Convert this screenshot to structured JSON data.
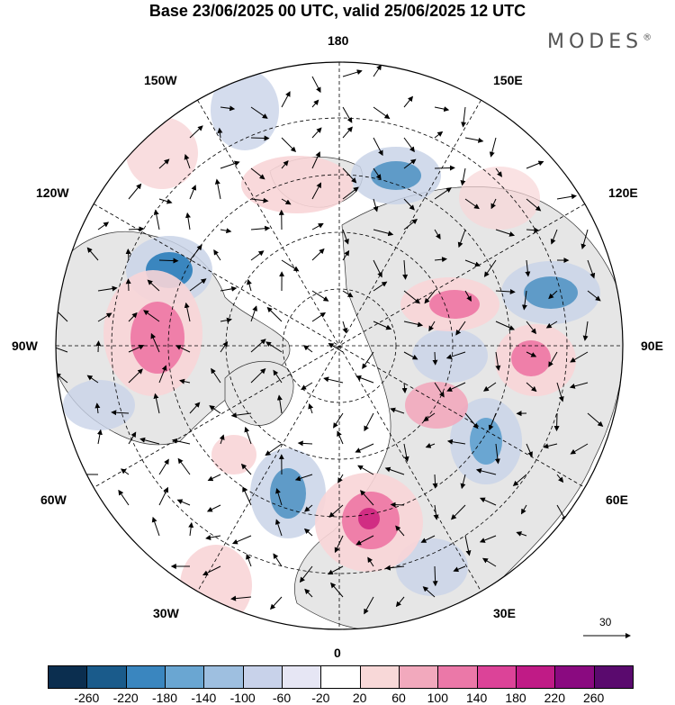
{
  "header": {
    "title": "Base 23/06/2025 00 UTC, valid 25/06/2025 12 UTC",
    "brand": "MODES",
    "brand_mark": "®"
  },
  "map": {
    "projection": "north-polar-stereographic",
    "longitude_labels": {
      "top": "180",
      "bottom": "0",
      "left": "90W",
      "right": "90E",
      "upper_left_1": "150W",
      "upper_left_2": "120W",
      "upper_right_1": "150E",
      "upper_right_2": "120E",
      "lower_left_1": "60W",
      "lower_left_2": "30W",
      "lower_right_1": "60E",
      "lower_right_2": "30E"
    },
    "vector_scale_label": "30",
    "colors": {
      "land": "#e6e6e6",
      "ocean": "#ffffff",
      "neg_strong": "#0b3d66",
      "neg_mid": "#5f9bc8",
      "neg_weak": "#c9d3e8",
      "pos_weak": "#f8d5d7",
      "pos_mid": "#ef7fa9",
      "pos_strong": "#d12d83"
    }
  },
  "colorbar": {
    "ticks": [
      "-260",
      "-220",
      "-180",
      "-140",
      "-100",
      "-60",
      "-20",
      "20",
      "60",
      "100",
      "140",
      "180",
      "220",
      "260"
    ],
    "colors": [
      "#0b2e4f",
      "#1a5b8b",
      "#3a86bf",
      "#6aa6d2",
      "#9ebfe0",
      "#c8d2ea",
      "#e6e6f4",
      "#ffffff",
      "#f8d8d8",
      "#f2a9bd",
      "#eb78a8",
      "#dc4398",
      "#c01b86",
      "#8a0a80",
      "#5a0a6e"
    ]
  }
}
